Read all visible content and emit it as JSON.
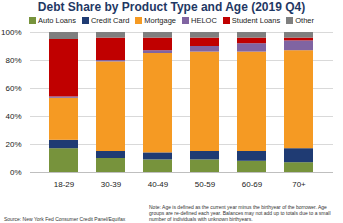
{
  "chart_data": {
    "type": "bar",
    "stacked": true,
    "title": "Debt Share by Product Type and Age (2019 Q4)",
    "categories": [
      "18-29",
      "30-39",
      "40-49",
      "50-59",
      "60-69",
      "70+"
    ],
    "series": [
      {
        "name": "Auto Loans",
        "color": "#77933c",
        "values": [
          17,
          10,
          9,
          9,
          8,
          7
        ]
      },
      {
        "name": "Credit Card",
        "color": "#1f3b73",
        "values": [
          6,
          5,
          5,
          6,
          7,
          10
        ]
      },
      {
        "name": "Mortgage",
        "color": "#f59a23",
        "values": [
          30,
          64,
          71,
          71,
          71,
          70
        ]
      },
      {
        "name": "HELOC",
        "color": "#8064a2",
        "values": [
          1,
          1,
          2,
          4,
          6,
          7
        ]
      },
      {
        "name": "Student Loans",
        "color": "#c00000",
        "values": [
          41,
          16,
          9,
          6,
          4,
          2
        ]
      },
      {
        "name": "Other",
        "color": "#7f7f7f",
        "values": [
          5,
          4,
          4,
          4,
          4,
          4
        ]
      }
    ],
    "ylim": [
      0,
      100
    ],
    "yticks": [
      {
        "value": 0,
        "label": "0%"
      },
      {
        "value": 20,
        "label": "20%"
      },
      {
        "value": 40,
        "label": "40%"
      },
      {
        "value": 60,
        "label": "60%"
      },
      {
        "value": 80,
        "label": "80%"
      },
      {
        "value": 100,
        "label": "100%"
      }
    ],
    "grid": true,
    "legend": "top",
    "source": "Source: New York Fed Consumer Credit Panel/Equifax",
    "note": "Note: Age is defined as the current year minus the birthyear of the borrower. Age groups are re-defined each year. Balances may not add up to totals due to a small number of individuals with unknown birthyears."
  }
}
